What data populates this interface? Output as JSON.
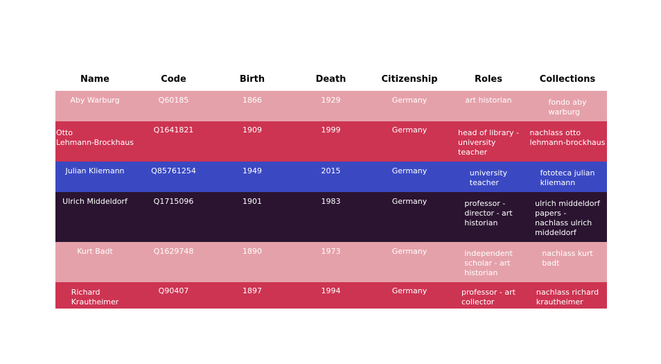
{
  "chart_data": {
    "type": "table",
    "columns": [
      "Name",
      "Code",
      "Birth",
      "Death",
      "Citizenship",
      "Roles",
      "Collections"
    ],
    "rows": [
      {
        "cells": [
          [
            "Aby Warburg"
          ],
          [
            "Q60185"
          ],
          [
            "1866"
          ],
          [
            "1929"
          ],
          [
            "Germany"
          ],
          [
            "art historian"
          ],
          [
            "fondo aby",
            "warburg"
          ]
        ],
        "fill": "#e5a1aa"
      },
      {
        "cells": [
          [
            "Otto",
            "Lehmann-Brockhaus"
          ],
          [
            "Q1641821"
          ],
          [
            "1909"
          ],
          [
            "1999"
          ],
          [
            "Germany"
          ],
          [
            "head of library -",
            "university",
            "teacher"
          ],
          [
            "nachlass otto",
            "lehmann-brockhaus"
          ]
        ],
        "fill": "#cd3452"
      },
      {
        "cells": [
          [
            "Julian Kliemann"
          ],
          [
            "Q85761254"
          ],
          [
            "1949"
          ],
          [
            "2015"
          ],
          [
            "Germany"
          ],
          [
            "university",
            "teacher"
          ],
          [
            "fototeca julian",
            "kliemann"
          ]
        ],
        "fill": "#3a49c2"
      },
      {
        "cells": [
          [
            "Ulrich Middeldorf"
          ],
          [
            "Q1715096"
          ],
          [
            "1901"
          ],
          [
            "1983"
          ],
          [
            "Germany"
          ],
          [
            "professor -",
            "director - art",
            "historian"
          ],
          [
            "ulrich middeldorf",
            "papers -",
            "nachlass ulrich",
            "middeldorf"
          ]
        ],
        "fill": "#2a1430"
      },
      {
        "cells": [
          [
            "Kurt Badt"
          ],
          [
            "Q1629748"
          ],
          [
            "1890"
          ],
          [
            "1973"
          ],
          [
            "Germany"
          ],
          [
            "independent",
            "scholar - art",
            "historian"
          ],
          [
            "nachlass kurt",
            "badt"
          ]
        ],
        "fill": "#e5a1aa"
      },
      {
        "cells": [
          [
            "Richard",
            "Krautheimer"
          ],
          [
            "Q90407"
          ],
          [
            "1897"
          ],
          [
            "1994"
          ],
          [
            "Germany"
          ],
          [
            "professor - art",
            "collector"
          ],
          [
            "nachlass richard",
            "krautheimer"
          ]
        ],
        "fill": "#cd3452"
      }
    ]
  }
}
